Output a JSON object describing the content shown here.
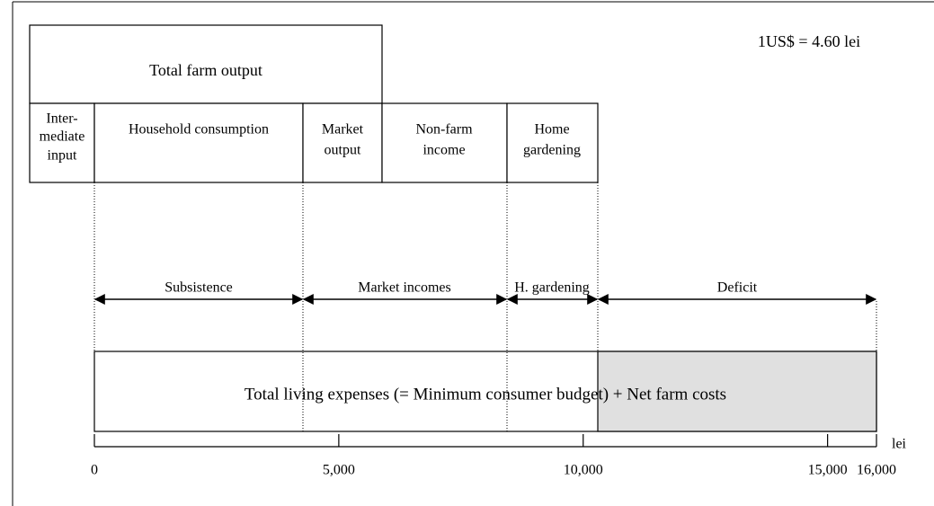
{
  "exchange_rate": "1US$ = 4.60 lei",
  "top_box": "Total farm output",
  "components": [
    {
      "lines": [
        "Inter-",
        "mediate",
        "input"
      ]
    },
    {
      "lines": [
        "Household consumption"
      ]
    },
    {
      "lines": [
        "Market",
        "output"
      ]
    },
    {
      "lines": [
        "Non-farm",
        "income"
      ]
    },
    {
      "lines": [
        "Home",
        "gardening"
      ]
    }
  ],
  "segments": [
    "Subsistence",
    "Market incomes",
    "H. gardening",
    "Deficit"
  ],
  "bottom_box": "Total living expenses (= Minimum consumer budget) + Net farm costs",
  "axis": {
    "unit": "lei",
    "lim": [
      0,
      16000
    ],
    "ticks": [
      0,
      {
        "value": 5000,
        "label": "5,000"
      },
      {
        "value": 10000,
        "label": "10,000"
      },
      {
        "value": 15000,
        "label": "15,000"
      },
      {
        "value": 16000,
        "label": "16,000"
      }
    ]
  }
}
